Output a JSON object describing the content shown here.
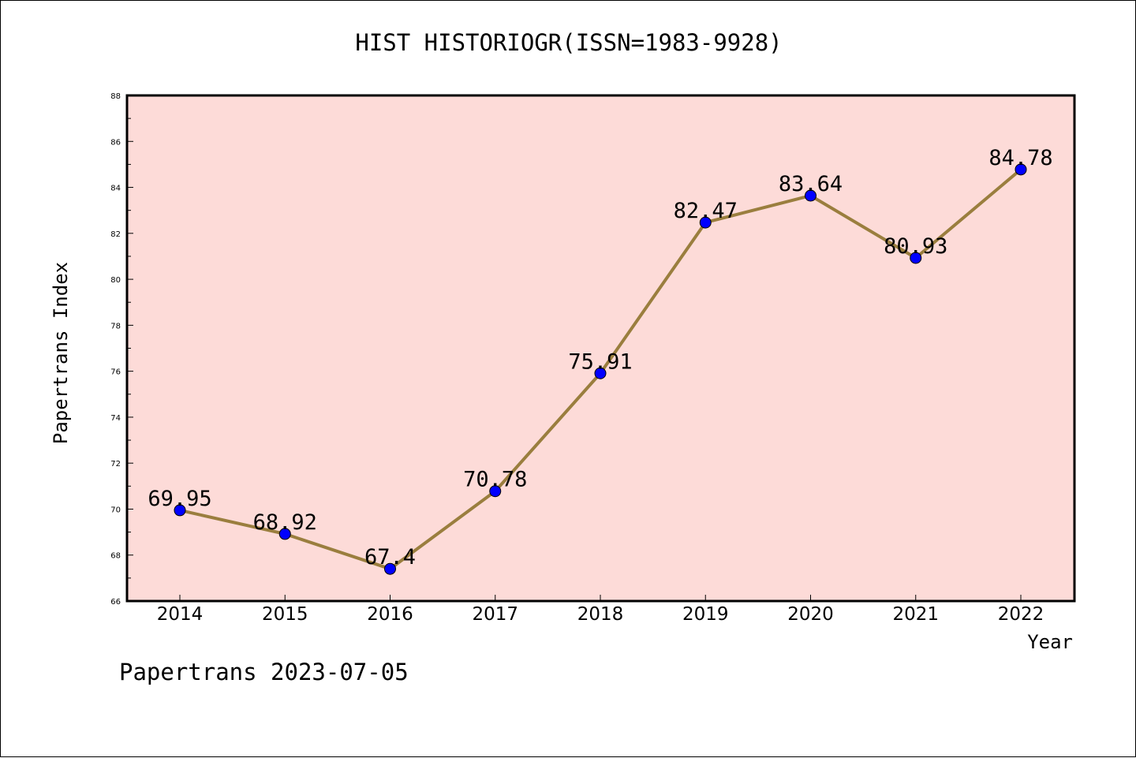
{
  "colors": {
    "plot_background": "#fddbd8",
    "line": "#9a7e3e",
    "marker": "#0000ff",
    "text": "#000000"
  },
  "footer_text": "Papertrans 2023-07-05",
  "chart_data": {
    "type": "line",
    "title": "HIST HISTORIOGR(ISSN=1983-9928)",
    "xlabel": "Year",
    "ylabel": "Papertrans Index",
    "x": [
      "2014",
      "2015",
      "2016",
      "2017",
      "2018",
      "2019",
      "2020",
      "2021",
      "2022"
    ],
    "series": [
      {
        "values": [
          69.95,
          68.92,
          67.4,
          70.78,
          75.91,
          82.47,
          83.64,
          80.93,
          84.78
        ]
      }
    ],
    "data_labels": [
      "69.95",
      "68.92",
      "67.4",
      "70.78",
      "75.91",
      "82.47",
      "83.64",
      "80.93",
      "84.78"
    ],
    "ylim": [
      66,
      88
    ],
    "yticks": [
      "66",
      "68",
      "70",
      "72",
      "74",
      "76",
      "78",
      "80",
      "82",
      "84",
      "86",
      "88"
    ],
    "grid": false,
    "legend": "none"
  }
}
